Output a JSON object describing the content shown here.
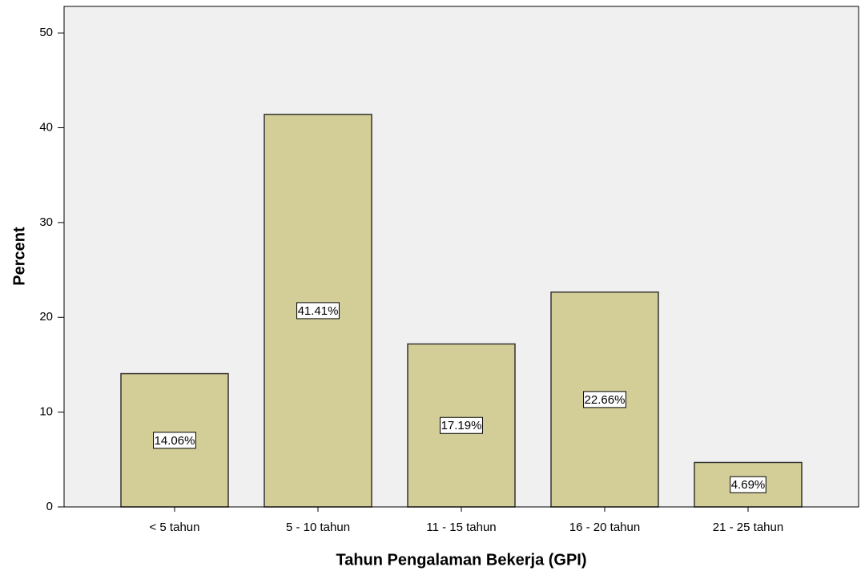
{
  "chart_data": {
    "type": "bar",
    "xlabel": "Tahun Pengalaman Bekerja (GPI)",
    "ylabel": "Percent",
    "categories": [
      "< 5 tahun",
      "5 - 10 tahun",
      "11 - 15 tahun",
      "16 - 20 tahun",
      "21 - 25 tahun"
    ],
    "values": [
      14.06,
      41.41,
      17.19,
      22.66,
      4.69
    ],
    "value_labels": [
      "14.06%",
      "41.41%",
      "17.19%",
      "22.66%",
      "4.69%"
    ],
    "color": "#d3ce97",
    "ylim": [
      0,
      52.8
    ],
    "yticks": [
      0,
      10,
      20,
      30,
      40,
      50
    ],
    "grid": false
  }
}
